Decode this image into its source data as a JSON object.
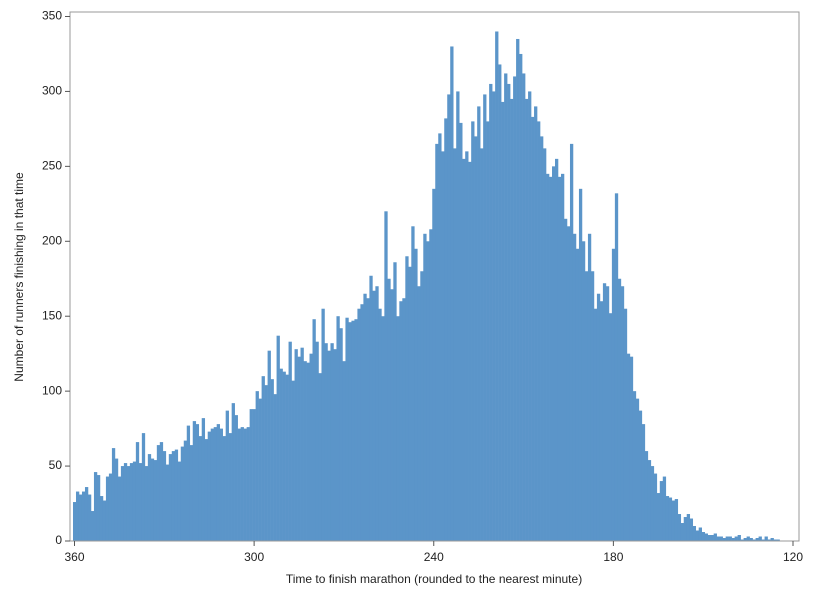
{
  "chart_data": {
    "type": "histogram",
    "x_label": "Time to finish marathon (rounded to the nearest minute)",
    "y_label": "Number of runners finishing in that time",
    "color": "#5b95c9",
    "xlim": [
      361.5,
      118
    ],
    "xticks": [
      360,
      300,
      240,
      180,
      120
    ],
    "ylim": [
      0,
      353
    ],
    "yticks": [
      0,
      50,
      100,
      150,
      200,
      250,
      300,
      350
    ],
    "bins": [
      360.5,
      359.5,
      358.5,
      357.5,
      356.5,
      355.5,
      354.5,
      353.5,
      352.5,
      351.5,
      350.5,
      349.5,
      348.5,
      347.5,
      346.5,
      345.5,
      344.5,
      343.5,
      342.5,
      341.5,
      340.5,
      339.5,
      338.5,
      337.5,
      336.5,
      335.5,
      334.5,
      333.5,
      332.5,
      331.5,
      330.5,
      329.5,
      328.5,
      327.5,
      326.5,
      325.5,
      324.5,
      323.5,
      322.5,
      321.5,
      320.5,
      319.5,
      318.5,
      317.5,
      316.5,
      315.5,
      314.5,
      313.5,
      312.5,
      311.5,
      310.5,
      309.5,
      308.5,
      307.5,
      306.5,
      305.5,
      304.5,
      303.5,
      302.5,
      301.5,
      300.5,
      299.5,
      298.5,
      297.5,
      296.5,
      295.5,
      294.5,
      293.5,
      292.5,
      291.5,
      290.5,
      289.5,
      288.5,
      287.5,
      286.5,
      285.5,
      284.5,
      283.5,
      282.5,
      281.5,
      280.5,
      279.5,
      278.5,
      277.5,
      276.5,
      275.5,
      274.5,
      273.5,
      272.5,
      271.5,
      270.5,
      269.5,
      268.5,
      267.5,
      266.5,
      265.5,
      264.5,
      263.5,
      262.5,
      261.5,
      260.5,
      259.5,
      258.5,
      257.5,
      256.5,
      255.5,
      254.5,
      253.5,
      252.5,
      251.5,
      250.5,
      249.5,
      248.5,
      247.5,
      246.5,
      245.5,
      244.5,
      243.5,
      242.5,
      241.5,
      240.5,
      239.5,
      238.5,
      237.5,
      236.5,
      235.5,
      234.5,
      233.5,
      232.5,
      231.5,
      230.5,
      229.5,
      228.5,
      227.5,
      226.5,
      225.5,
      224.5,
      223.5,
      222.5,
      221.5,
      220.5,
      219.5,
      218.5,
      217.5,
      216.5,
      215.5,
      214.5,
      213.5,
      212.5,
      211.5,
      210.5,
      209.5,
      208.5,
      207.5,
      206.5,
      205.5,
      204.5,
      203.5,
      202.5,
      201.5,
      200.5,
      199.5,
      198.5,
      197.5,
      196.5,
      195.5,
      194.5,
      193.5,
      192.5,
      191.5,
      190.5,
      189.5,
      188.5,
      187.5,
      186.5,
      185.5,
      184.5,
      183.5,
      182.5,
      181.5,
      180.5,
      179.5,
      178.5,
      177.5,
      176.5,
      175.5,
      174.5,
      173.5,
      172.5,
      171.5,
      170.5,
      169.5,
      168.5,
      167.5,
      166.5,
      165.5,
      164.5,
      163.5,
      162.5,
      161.5,
      160.5,
      159.5,
      158.5,
      157.5,
      156.5,
      155.5,
      154.5,
      153.5,
      152.5,
      151.5,
      150.5,
      149.5,
      148.5,
      147.5,
      146.5,
      145.5,
      144.5,
      143.5,
      142.5,
      141.5,
      140.5,
      139.5,
      138.5,
      137.5,
      136.5,
      135.5,
      134.5,
      133.5,
      132.5,
      131.5,
      130.5,
      129.5,
      128.5,
      127.5,
      126.5,
      125.5,
      124.5
    ],
    "values": [
      26,
      33,
      31,
      33,
      36,
      31,
      20,
      46,
      44,
      30,
      27,
      43,
      45,
      62,
      55,
      43,
      50,
      52,
      50,
      52,
      53,
      66,
      52,
      72,
      50,
      58,
      55,
      54,
      64,
      66,
      60,
      51,
      58,
      60,
      61,
      53,
      63,
      67,
      77,
      64,
      80,
      78,
      70,
      82,
      68,
      73,
      75,
      76,
      78,
      75,
      70,
      87,
      72,
      92,
      84,
      75,
      76,
      75,
      76,
      88,
      88,
      100,
      95,
      110,
      104,
      127,
      108,
      98,
      137,
      115,
      113,
      111,
      133,
      107,
      128,
      123,
      129,
      120,
      119,
      125,
      148,
      133,
      112,
      155,
      132,
      127,
      132,
      128,
      150,
      142,
      120,
      149,
      146,
      147,
      148,
      155,
      158,
      165,
      162,
      177,
      167,
      170,
      155,
      150,
      220,
      175,
      168,
      186,
      150,
      160,
      162,
      190,
      183,
      210,
      195,
      170,
      180,
      205,
      200,
      208,
      235,
      265,
      272,
      260,
      282,
      298,
      330,
      262,
      300,
      279,
      255,
      260,
      253,
      280,
      270,
      290,
      262,
      298,
      280,
      305,
      300,
      340,
      318,
      293,
      312,
      305,
      295,
      310,
      335,
      325,
      312,
      295,
      300,
      283,
      290,
      280,
      270,
      262,
      245,
      243,
      250,
      255,
      243,
      245,
      215,
      210,
      265,
      205,
      195,
      235,
      200,
      180,
      205,
      180,
      155,
      165,
      160,
      172,
      170,
      152,
      195,
      232,
      175,
      170,
      155,
      125,
      123,
      100,
      95,
      87,
      78,
      60,
      54,
      50,
      45,
      32,
      40,
      43,
      30,
      29,
      27,
      28,
      18,
      12,
      16,
      18,
      15,
      10,
      7,
      9,
      6,
      5,
      4,
      4,
      5,
      3,
      3,
      2,
      3,
      3,
      2,
      3,
      4,
      1,
      2,
      3,
      2,
      1,
      2,
      3,
      1,
      3,
      1,
      2,
      1,
      1
    ]
  }
}
